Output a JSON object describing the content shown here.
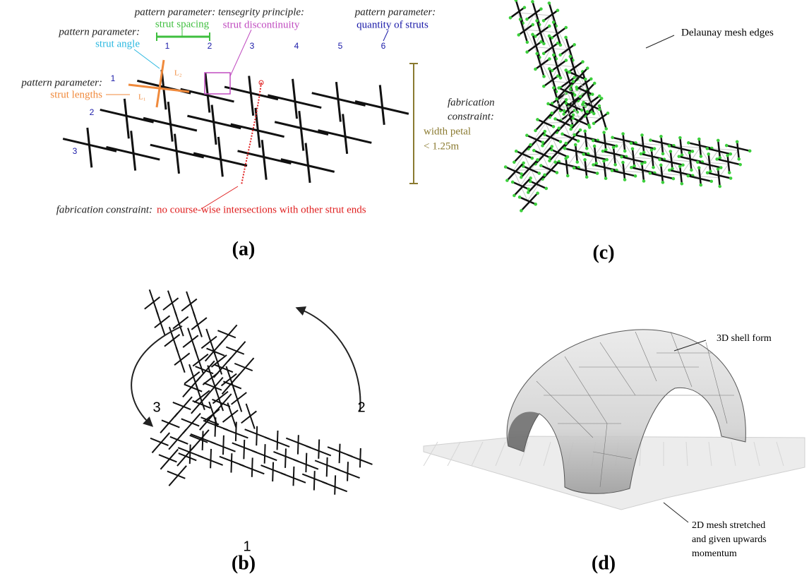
{
  "panel_a": {
    "caption": "(a)",
    "annotations": [
      {
        "heading": "pattern parameter:",
        "text": "strut spacing"
      },
      {
        "heading": "tensegrity principle:",
        "text": "strut discontinuity"
      },
      {
        "heading": "pattern parameter:",
        "text": "quantity of struts"
      },
      {
        "heading": "pattern parameter:",
        "text": "strut angle"
      },
      {
        "heading": "pattern parameter:",
        "text": "strut lengths"
      }
    ],
    "column_numbers": [
      "1",
      "2",
      "3",
      "4",
      "5",
      "6"
    ],
    "row_numbers": [
      "1",
      "2",
      "3"
    ],
    "length_labels": [
      "L₂",
      "L₁"
    ],
    "width_constraint": {
      "heading": [
        "fabrication",
        "constraint:"
      ],
      "lines": [
        "width petal",
        "< 1.25m"
      ]
    },
    "intersection_constraint": {
      "heading": "fabrication constraint:",
      "text": "no course-wise intersections with other strut ends"
    }
  },
  "panel_b": {
    "caption": "(b)",
    "petal_numbers": [
      "3",
      "2",
      "1"
    ]
  },
  "panel_c": {
    "caption": "(c)",
    "annotation": "Delaunay mesh edges"
  },
  "panel_d": {
    "caption": "(d)",
    "annotations": [
      {
        "lines": [
          "3D shell form"
        ]
      },
      {
        "lines": [
          "2D mesh stretched",
          "and given upwards",
          "momentum"
        ]
      }
    ]
  }
}
